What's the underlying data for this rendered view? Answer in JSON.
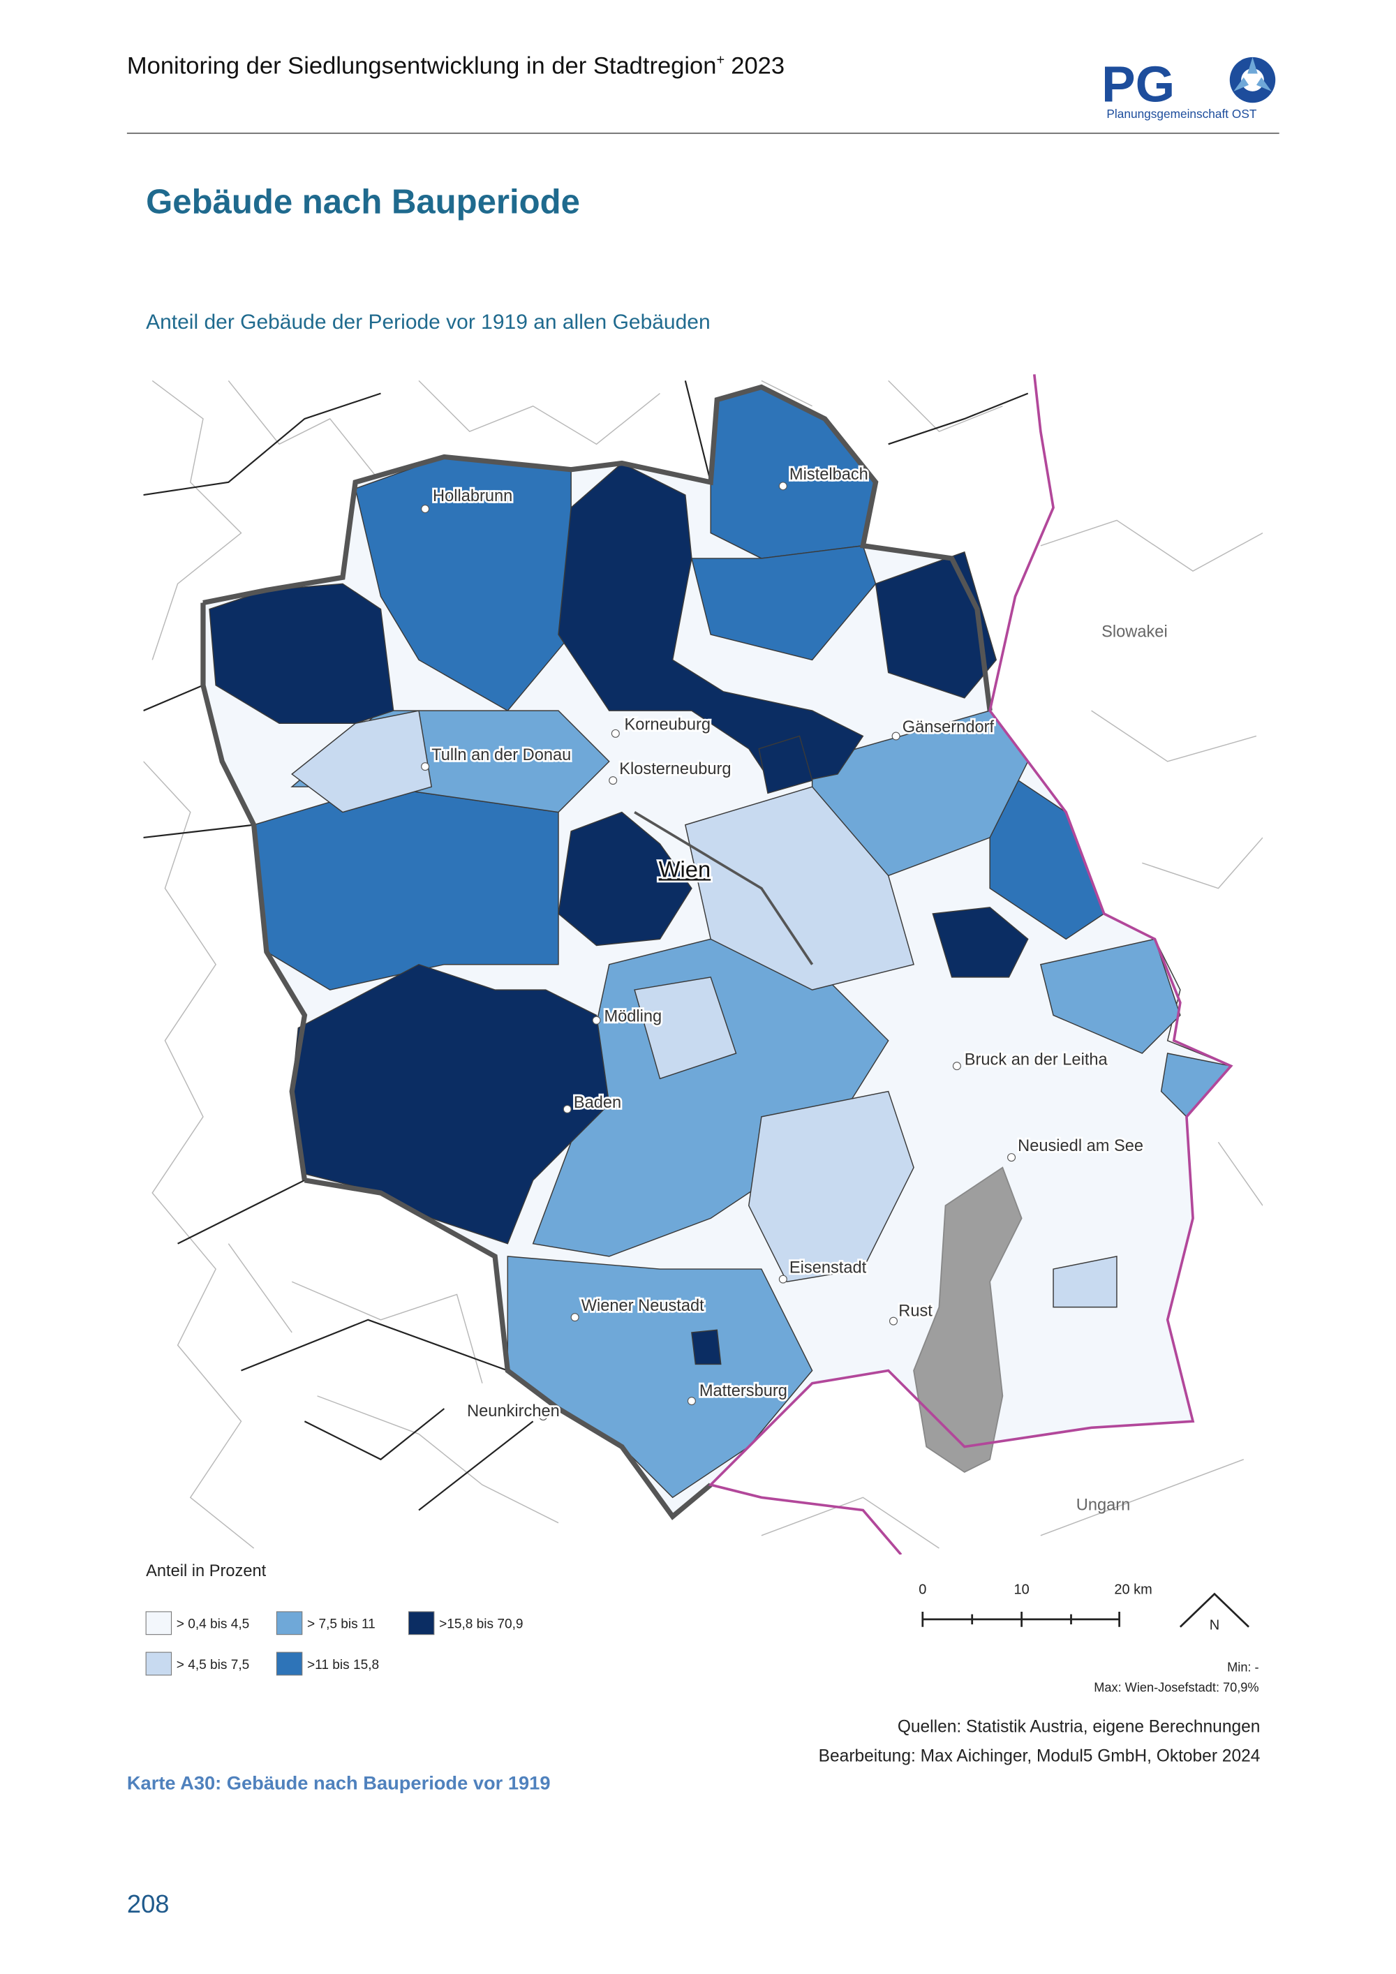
{
  "header": {
    "title": "Monitoring der Siedlungsentwicklung in der Stadtregion",
    "title_sup": "+",
    "title_year": "2023",
    "logo_text": "PG",
    "logo_subtitle": "Planungsgemeinschaft OST"
  },
  "page": {
    "heading": "Gebäude nach Bauperiode",
    "map_title": "Anteil der Gebäude der Periode vor 1919 an allen Gebäuden",
    "caption": "Karte A30: Gebäude nach Bauperiode vor 1919",
    "page_number": "208"
  },
  "map": {
    "places": [
      "Hollabrunn",
      "Mistelbach",
      "Korneuburg",
      "Gänserndorf",
      "Tulln an der Donau",
      "Klosterneuburg",
      "Wien",
      "Mödling",
      "Bruck an der Leitha",
      "Baden",
      "Neusiedl am See",
      "Eisenstadt",
      "Wiener Neustadt",
      "Rust",
      "Mattersburg",
      "Neunkirchen"
    ],
    "countries": [
      "Slowakei",
      "Ungarn"
    ]
  },
  "legend": {
    "title": "Anteil in Prozent",
    "items": [
      {
        "label": "> 0,4 bis 4,5",
        "color": "#f3f7fc"
      },
      {
        "label": "> 4,5 bis 7,5",
        "color": "#c8daf0"
      },
      {
        "label": "> 7,5 bis 11",
        "color": "#6fa8d8"
      },
      {
        "label": ">11 bis 15,8",
        "color": "#2e74b8"
      },
      {
        "label": ">15,8 bis 70,9",
        "color": "#0b2d63"
      }
    ]
  },
  "scale": {
    "labels": [
      "0",
      "10",
      "20 km"
    ],
    "north": "N"
  },
  "notes": {
    "min": "Min: -",
    "max": "Max: Wien-Josefstadt: 70,9%",
    "sources": "Quellen: Statistik Austria, eigene Berechnungen",
    "editor": "Bearbeitung: Max Aichinger, Modul5 GmbH, Oktober 2024"
  }
}
